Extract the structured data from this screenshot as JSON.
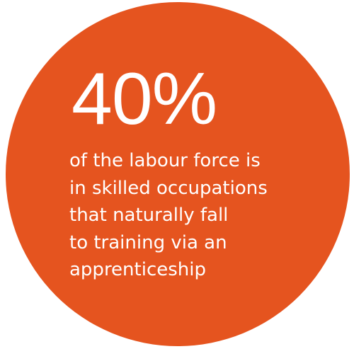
{
  "graphic": {
    "background_color": "#ffffff",
    "circle_color": "#e5541f",
    "text_color": "#ffffff",
    "stat_value": "40%",
    "caption_lines": [
      "of the labour force is",
      "in skilled occupations",
      "that naturally fall",
      "to training via an",
      "apprenticeship"
    ]
  }
}
